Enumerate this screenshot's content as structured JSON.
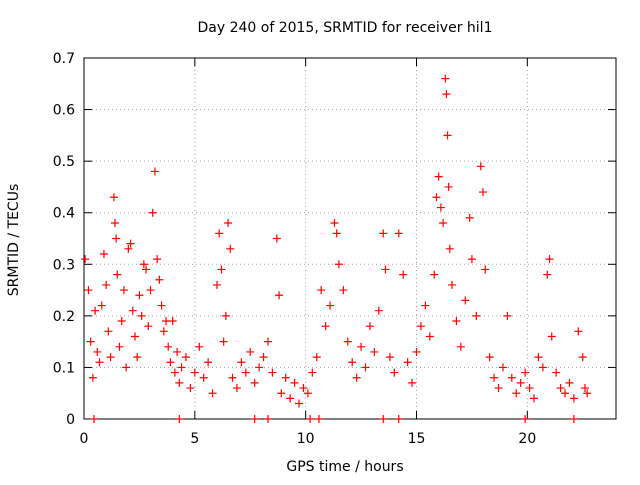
{
  "chart_data": {
    "type": "scatter",
    "title": "Day 240 of 2015, SRMTID for receiver hil1",
    "xlabel": "GPS time / hours",
    "ylabel": "SRMTID / TECUs",
    "xlim": [
      0,
      24
    ],
    "ylim": [
      0,
      0.7
    ],
    "xticks": [
      0,
      5,
      10,
      15,
      20
    ],
    "yticks": [
      0,
      0.1,
      0.2,
      0.3,
      0.4,
      0.5,
      0.6,
      0.7
    ],
    "grid": true,
    "marker": "+",
    "color": "#ff0000",
    "series": [
      {
        "name": "SRMTID",
        "points": [
          [
            0.05,
            0.31
          ],
          [
            0.2,
            0.25
          ],
          [
            0.3,
            0.15
          ],
          [
            0.4,
            0.08
          ],
          [
            0.5,
            0.21
          ],
          [
            0.6,
            0.13
          ],
          [
            0.7,
            0.11
          ],
          [
            0.8,
            0.22
          ],
          [
            0.9,
            0.32
          ],
          [
            1.0,
            0.26
          ],
          [
            1.1,
            0.17
          ],
          [
            1.2,
            0.12
          ],
          [
            1.35,
            0.43
          ],
          [
            1.4,
            0.38
          ],
          [
            1.45,
            0.35
          ],
          [
            1.5,
            0.28
          ],
          [
            1.6,
            0.14
          ],
          [
            1.7,
            0.19
          ],
          [
            1.8,
            0.25
          ],
          [
            1.9,
            0.1
          ],
          [
            2.0,
            0.33
          ],
          [
            2.1,
            0.34
          ],
          [
            2.2,
            0.21
          ],
          [
            2.3,
            0.16
          ],
          [
            2.4,
            0.12
          ],
          [
            2.5,
            0.24
          ],
          [
            2.6,
            0.2
          ],
          [
            2.7,
            0.3
          ],
          [
            2.8,
            0.29
          ],
          [
            2.9,
            0.18
          ],
          [
            3.0,
            0.25
          ],
          [
            3.1,
            0.4
          ],
          [
            3.2,
            0.48
          ],
          [
            3.3,
            0.31
          ],
          [
            3.4,
            0.27
          ],
          [
            3.5,
            0.22
          ],
          [
            3.6,
            0.17
          ],
          [
            3.7,
            0.19
          ],
          [
            3.8,
            0.14
          ],
          [
            3.9,
            0.11
          ],
          [
            4.0,
            0.19
          ],
          [
            4.1,
            0.09
          ],
          [
            4.2,
            0.13
          ],
          [
            4.3,
            0.07
          ],
          [
            4.4,
            0.1
          ],
          [
            4.6,
            0.12
          ],
          [
            4.8,
            0.06
          ],
          [
            5.0,
            0.09
          ],
          [
            5.2,
            0.14
          ],
          [
            5.4,
            0.08
          ],
          [
            5.6,
            0.11
          ],
          [
            5.8,
            0.05
          ],
          [
            6.0,
            0.26
          ],
          [
            6.1,
            0.36
          ],
          [
            6.2,
            0.29
          ],
          [
            6.3,
            0.15
          ],
          [
            6.4,
            0.2
          ],
          [
            6.5,
            0.38
          ],
          [
            6.6,
            0.33
          ],
          [
            6.7,
            0.08
          ],
          [
            6.9,
            0.06
          ],
          [
            7.1,
            0.11
          ],
          [
            7.3,
            0.09
          ],
          [
            7.5,
            0.13
          ],
          [
            7.7,
            0.07
          ],
          [
            7.9,
            0.1
          ],
          [
            8.1,
            0.12
          ],
          [
            8.3,
            0.15
          ],
          [
            8.5,
            0.09
          ],
          [
            8.7,
            0.35
          ],
          [
            8.8,
            0.24
          ],
          [
            8.9,
            0.05
          ],
          [
            9.1,
            0.08
          ],
          [
            9.3,
            0.04
          ],
          [
            9.5,
            0.07
          ],
          [
            9.7,
            0.03
          ],
          [
            9.9,
            0.06
          ],
          [
            10.1,
            0.05
          ],
          [
            10.3,
            0.09
          ],
          [
            10.5,
            0.12
          ],
          [
            10.7,
            0.25
          ],
          [
            10.9,
            0.18
          ],
          [
            11.1,
            0.22
          ],
          [
            11.3,
            0.38
          ],
          [
            11.4,
            0.36
          ],
          [
            11.5,
            0.3
          ],
          [
            11.7,
            0.25
          ],
          [
            11.9,
            0.15
          ],
          [
            12.1,
            0.11
          ],
          [
            12.3,
            0.08
          ],
          [
            12.5,
            0.14
          ],
          [
            12.7,
            0.1
          ],
          [
            12.9,
            0.18
          ],
          [
            13.1,
            0.13
          ],
          [
            13.3,
            0.21
          ],
          [
            13.5,
            0.36
          ],
          [
            13.6,
            0.29
          ],
          [
            13.8,
            0.12
          ],
          [
            14.0,
            0.09
          ],
          [
            14.2,
            0.36
          ],
          [
            14.4,
            0.28
          ],
          [
            14.6,
            0.11
          ],
          [
            14.8,
            0.07
          ],
          [
            15.0,
            0.13
          ],
          [
            15.2,
            0.18
          ],
          [
            15.4,
            0.22
          ],
          [
            15.6,
            0.16
          ],
          [
            15.8,
            0.28
          ],
          [
            15.9,
            0.43
          ],
          [
            16.0,
            0.47
          ],
          [
            16.1,
            0.41
          ],
          [
            16.2,
            0.38
          ],
          [
            16.3,
            0.66
          ],
          [
            16.35,
            0.63
          ],
          [
            16.4,
            0.55
          ],
          [
            16.45,
            0.45
          ],
          [
            16.5,
            0.33
          ],
          [
            16.6,
            0.26
          ],
          [
            16.8,
            0.19
          ],
          [
            17.0,
            0.14
          ],
          [
            17.2,
            0.23
          ],
          [
            17.4,
            0.39
          ],
          [
            17.5,
            0.31
          ],
          [
            17.7,
            0.2
          ],
          [
            17.9,
            0.49
          ],
          [
            18.0,
            0.44
          ],
          [
            18.1,
            0.29
          ],
          [
            18.3,
            0.12
          ],
          [
            18.5,
            0.08
          ],
          [
            18.7,
            0.06
          ],
          [
            18.9,
            0.1
          ],
          [
            19.1,
            0.2
          ],
          [
            19.3,
            0.08
          ],
          [
            19.5,
            0.05
          ],
          [
            19.7,
            0.07
          ],
          [
            19.9,
            0.09
          ],
          [
            20.1,
            0.06
          ],
          [
            20.3,
            0.04
          ],
          [
            20.5,
            0.12
          ],
          [
            20.7,
            0.1
          ],
          [
            20.9,
            0.28
          ],
          [
            21.0,
            0.31
          ],
          [
            21.1,
            0.16
          ],
          [
            21.3,
            0.09
          ],
          [
            21.5,
            0.06
          ],
          [
            21.7,
            0.05
          ],
          [
            21.9,
            0.07
          ],
          [
            22.1,
            0.04
          ],
          [
            22.3,
            0.17
          ],
          [
            22.5,
            0.12
          ],
          [
            22.6,
            0.06
          ],
          [
            22.7,
            0.05
          ],
          [
            0.45,
            0.0
          ],
          [
            4.3,
            0.0
          ],
          [
            7.7,
            0.0
          ],
          [
            8.3,
            0.0
          ],
          [
            10.2,
            0.0
          ],
          [
            10.6,
            0.0
          ],
          [
            13.5,
            0.0
          ],
          [
            14.2,
            0.0
          ],
          [
            19.9,
            0.0
          ],
          [
            22.1,
            0.0
          ]
        ]
      }
    ]
  }
}
